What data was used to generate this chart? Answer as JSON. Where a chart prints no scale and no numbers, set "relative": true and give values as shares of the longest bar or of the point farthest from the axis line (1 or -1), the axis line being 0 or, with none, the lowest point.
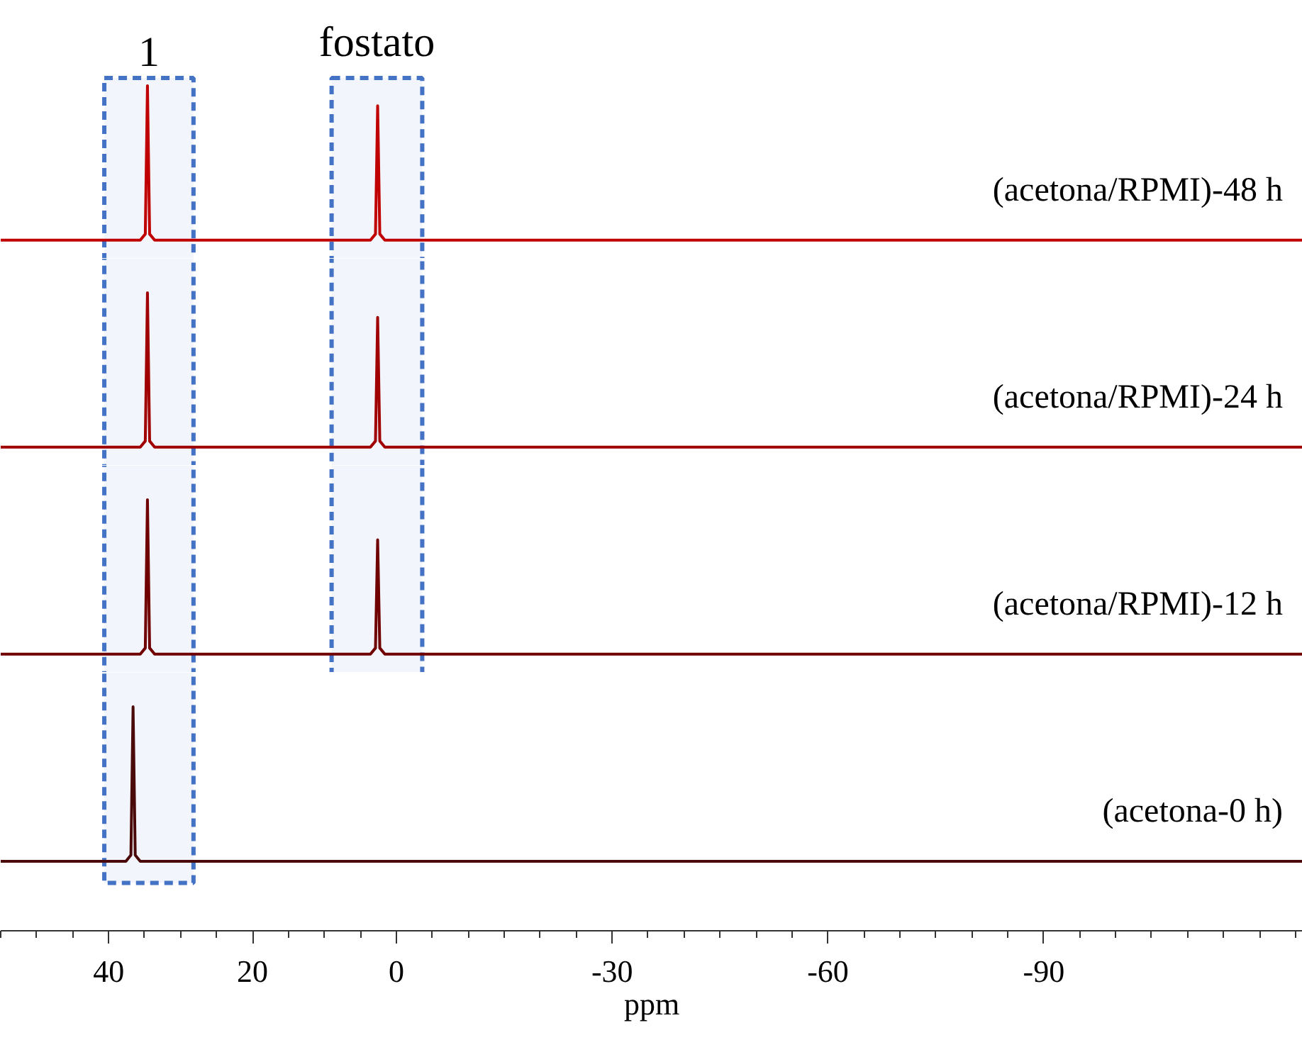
{
  "chart_data": [
    {
      "type": "line",
      "relative": true,
      "xlim": [
        55,
        -126
      ],
      "tick_labels": false,
      "line_style": "solid",
      "bands": [
        {
          "axis": "x",
          "from": 40.6,
          "to": 28.2,
          "label": "1",
          "color": "#4472c4"
        },
        {
          "axis": "x",
          "from": 9,
          "to": -3.6,
          "label": "fostato",
          "color": "#4472c4"
        }
      ],
      "series": [
        {
          "name": "(acetona/RPMI)-48 h",
          "color": "#c00000",
          "x": [
            55,
            35.6,
            34.9,
            34.6,
            34.3,
            33.6,
            3.6,
            2.9,
            2.6,
            2.3,
            1.6,
            -126
          ],
          "values": [
            0,
            0,
            0.04,
            1,
            0.04,
            0,
            0,
            0.04,
            0.87,
            0.04,
            0,
            0
          ]
        }
      ]
    },
    {
      "type": "line",
      "relative": true,
      "xlim": [
        55,
        -126
      ],
      "tick_labels": false,
      "line_style": "solid",
      "series": [
        {
          "name": "(acetona/RPMI)-24 h",
          "color": "#a00000",
          "x": [
            55,
            35.6,
            34.9,
            34.6,
            34.3,
            33.6,
            3.6,
            2.9,
            2.6,
            2.3,
            1.6,
            -126
          ],
          "values": [
            0,
            0,
            0.04,
            1,
            0.04,
            0,
            0,
            0.04,
            0.84,
            0.04,
            0,
            0
          ]
        }
      ],
      "bands": [
        {
          "axis": "x",
          "from": 40.6,
          "to": 28.2,
          "color": "#4472c4"
        },
        {
          "axis": "x",
          "from": 9,
          "to": -3.6,
          "color": "#4472c4"
        }
      ]
    },
    {
      "type": "line",
      "relative": true,
      "xlim": [
        55,
        -126
      ],
      "tick_labels": false,
      "line_style": "solid",
      "series": [
        {
          "name": "(acetona/RPMI)-12 h",
          "color": "#700000",
          "x": [
            55,
            35.6,
            34.9,
            34.6,
            34.3,
            33.6,
            3.6,
            2.9,
            2.6,
            2.3,
            1.6,
            -126
          ],
          "values": [
            0,
            0,
            0.04,
            1,
            0.04,
            0,
            0,
            0.04,
            0.74,
            0.04,
            0,
            0
          ]
        }
      ],
      "bands": [
        {
          "axis": "x",
          "from": 40.6,
          "to": 28.2,
          "color": "#4472c4"
        },
        {
          "axis": "x",
          "from": 9,
          "to": -3.6,
          "color": "#4472c4"
        }
      ]
    },
    {
      "type": "line",
      "relative": true,
      "xlim": [
        55,
        -126
      ],
      "xlabel": "ppm",
      "tick_labels": "x",
      "line_style": "solid",
      "xticks": [
        40,
        20,
        0,
        -30,
        -60,
        -90
      ],
      "series": [
        {
          "name": "(acetona-0 h)",
          "color": "#4a0a0a",
          "x": [
            55,
            37.6,
            36.9,
            36.6,
            36.3,
            35.6,
            -126
          ],
          "values": [
            0,
            0,
            0.04,
            1,
            0.04,
            0,
            0
          ]
        }
      ],
      "bands": [
        {
          "axis": "x",
          "from": 40.6,
          "to": 28.2,
          "color": "#4472c4"
        }
      ]
    }
  ]
}
